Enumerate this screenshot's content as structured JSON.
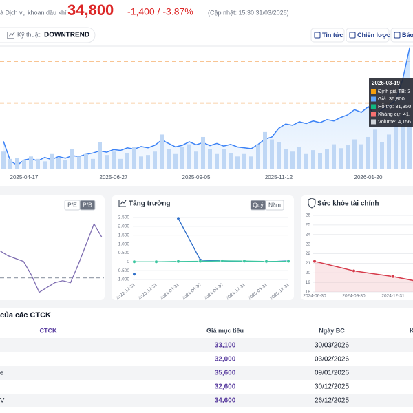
{
  "header": {
    "company": "à Dịch vụ khoan dầu khí",
    "price": "34,800",
    "change": "-1,400 / -3.87%",
    "updated": "(Cập nhật: 15:30 31/03/2026)"
  },
  "toolbar": {
    "technical_label": "Kỹ thuật:",
    "trend": "DOWNTREND",
    "buttons": [
      "Tin tức",
      "Chiến lược",
      "Báo"
    ]
  },
  "chart_data": [
    {
      "type": "line",
      "categories": [
        null,
        null,
        null,
        "2025-04-17",
        null,
        null,
        null,
        null,
        null,
        null,
        null,
        null,
        null,
        null,
        null,
        null,
        "2025-06-27",
        null,
        null,
        null,
        null,
        null,
        null,
        null,
        null,
        null,
        null,
        null,
        "2025-09-05",
        null,
        null,
        null,
        null,
        null,
        null,
        null,
        null,
        null,
        null,
        null,
        "2025-11-12",
        null,
        null,
        null,
        null,
        null,
        null,
        null,
        null,
        null,
        null,
        null,
        null,
        "2026-01-20",
        null,
        null,
        null,
        null,
        null,
        null
      ],
      "series": [
        {
          "color": "#3b82f6",
          "values": [
            22500,
            18000,
            17000,
            18200,
            18500,
            18000,
            18800,
            18300,
            19000,
            18600,
            19200,
            19000,
            19500,
            19800,
            20300,
            20000,
            20600,
            20400,
            21000,
            20700,
            21300,
            21000,
            21600,
            22800,
            22000,
            21200,
            21600,
            22400,
            21700,
            22200,
            21500,
            22000,
            21400,
            21800,
            21200,
            21000,
            20800,
            21800,
            23000,
            23500,
            25500,
            26500,
            26200,
            27000,
            26600,
            27200,
            26800,
            27500,
            27200,
            28000,
            28600,
            29800,
            29200,
            30500,
            28500,
            29800,
            30800,
            32000,
            36800,
            44000
          ]
        },
        {
          "type": "bar",
          "axis": "y2",
          "color": "#bfd7f5",
          "values": [
            3500000,
            2000000,
            2200000,
            1800000,
            2500000,
            2000000,
            1500000,
            3000000,
            2200000,
            1800000,
            4000000,
            2500000,
            3000000,
            2000000,
            5500000,
            2800000,
            3500000,
            2000000,
            3200000,
            4500000,
            2500000,
            2800000,
            3500000,
            7000000,
            4000000,
            3000000,
            4500000,
            5000000,
            3500000,
            6500000,
            4000000,
            3000000,
            4000000,
            3200000,
            2500000,
            3000000,
            2500000,
            5000000,
            7500000,
            6000000,
            5500000,
            4000000,
            3500000,
            4500000,
            3000000,
            3800000,
            3200000,
            4000000,
            5000000,
            4200000,
            4800000,
            6000000,
            5000000,
            6500000,
            8000000,
            5500000,
            7000000,
            9000000,
            11000000,
            10000000
          ]
        }
      ],
      "ylim": [
        16200,
        44300
      ],
      "y2lim": [
        0,
        25000000
      ],
      "reference_lines": [
        {
          "value": 41000,
          "color": "#f08a24"
        },
        {
          "value": 31350,
          "color": "#f08a24"
        }
      ],
      "tooltip": {
        "date": "2026-03-19",
        "lines": [
          "Định giá TB: 3",
          "Giá: 36,800",
          "Hỗ trợ: 31,350",
          "Kháng cự: 41,",
          "Volume: 4,156"
        ],
        "colors": [
          "#f59e0b",
          "#60a5fa",
          "#10b981",
          "#f87171",
          "#d1d5db"
        ]
      }
    },
    {
      "type": "line",
      "tabs": [
        "P/E",
        "P/B"
      ],
      "active_tab": 1,
      "series": [
        {
          "color": "#7c6bb0",
          "values": [
            1.14,
            1.09,
            1.06,
            1.03,
            0.89,
            0.71,
            0.76,
            0.81,
            0.83,
            0.81,
            1.0,
            1.21,
            1.42,
            1.28
          ]
        }
      ],
      "ylim": [
        0.6,
        1.6
      ],
      "reference_lines": [
        {
          "value": 0.86,
          "color": "#9ca3af"
        }
      ]
    },
    {
      "type": "line",
      "title": "Tăng trưởng",
      "tabs": [
        "Quý",
        "Năm"
      ],
      "active_tab": 0,
      "categories": [
        "2022-12-31",
        "2023-12-31",
        "2024-03-31",
        "2024-06-30",
        "2024-09-30",
        "2024-12-31",
        "2025-03-31",
        "2025-12-31"
      ],
      "series": [
        {
          "color": "#2f6fc9",
          "values": [
            -0.7,
            null,
            2.45,
            0.1,
            0.05,
            0.02,
            0.0,
            0.05
          ]
        },
        {
          "color": "#3cc6a0",
          "values": [
            0,
            0,
            0.02,
            0.03,
            0.05,
            0.04,
            0.02,
            0.03
          ]
        }
      ],
      "ylim": [
        -1.0,
        2.5
      ],
      "yticks": [
        {
          "value": 2.5,
          "label": "2.500"
        },
        {
          "value": 2.0,
          "label": "2.000"
        },
        {
          "value": 1.5,
          "label": "1.500"
        },
        {
          "value": 1.0,
          "label": "1.000"
        },
        {
          "value": 0.5,
          "label": "0.500"
        },
        0,
        {
          "value": -0.5,
          "label": "-0.500"
        },
        {
          "value": -1.0,
          "label": "-1.000"
        }
      ],
      "grid": true
    },
    {
      "type": "line",
      "title": "Sức khỏe tài chính",
      "categories": [
        "2024-06-30",
        "2024-09-30",
        "2024-12-31",
        null
      ],
      "series": [
        {
          "color": "#d63a4a",
          "values": [
            21.2,
            20.2,
            19.6,
            18.8
          ]
        }
      ],
      "ylim": [
        18,
        26
      ],
      "yticks": [
        26,
        25,
        24,
        23,
        22,
        21,
        20,
        19,
        18
      ],
      "grid": true
    }
  ],
  "table": {
    "title": "của các CTCK",
    "columns": [
      "CTCK",
      "Giá mục tiêu",
      "Ngày BC",
      "K"
    ],
    "rows": [
      {
        "target": "33,100",
        "date": "30/03/2026"
      },
      {
        "target": "32,000",
        "date": "03/02/2026"
      },
      {
        "name": "e",
        "target": "35,600",
        "date": "09/01/2026"
      },
      {
        "target": "32,600",
        "date": "30/12/2025"
      },
      {
        "name": "V",
        "target": "34,600",
        "date": "26/12/2025"
      }
    ]
  }
}
